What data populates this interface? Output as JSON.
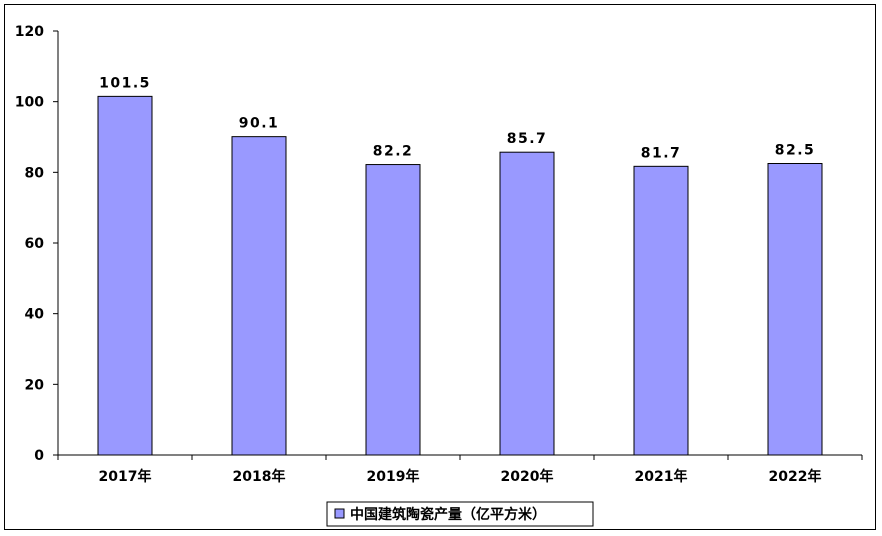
{
  "chart_data": {
    "type": "bar",
    "categories": [
      "2017年",
      "2018年",
      "2019年",
      "2020年",
      "2021年",
      "2022年"
    ],
    "series": [
      {
        "name": "中国建筑陶瓷产量（亿平方米）",
        "values": [
          101.5,
          90.1,
          82.2,
          85.7,
          81.7,
          82.5
        ],
        "labels": [
          "101.5",
          "90.1",
          "82.2",
          "85.7",
          "81.7",
          "82.5"
        ],
        "color": "#9999ff"
      }
    ],
    "ylim": [
      0,
      120
    ],
    "yticks": [
      "0",
      "20",
      "40",
      "60",
      "80",
      "100",
      "120"
    ],
    "grid": false,
    "legend": "bottom"
  }
}
